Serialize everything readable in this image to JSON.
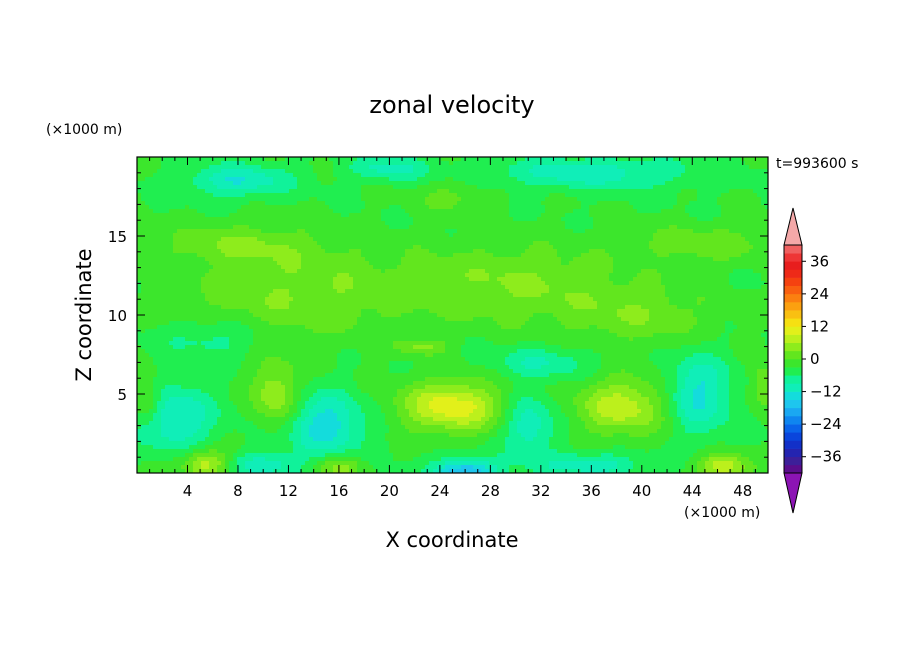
{
  "chart_data": {
    "type": "heatmap",
    "title": "zonal velocity",
    "xlabel": "X coordinate",
    "ylabel": "Z coordinate",
    "x_unit": "(×1000 m)",
    "y_unit": "(×1000 m)",
    "time_label": "t=993600 s",
    "xlim": [
      0,
      50
    ],
    "ylim": [
      0,
      20
    ],
    "x_ticks": [
      4,
      8,
      12,
      16,
      20,
      24,
      28,
      32,
      36,
      40,
      44,
      48
    ],
    "y_ticks": [
      5,
      10,
      15
    ],
    "x_tick_labels": [
      "4",
      "8",
      "12",
      "16",
      "20",
      "24",
      "28",
      "32",
      "36",
      "40",
      "44",
      "48"
    ],
    "y_tick_labels": [
      "5",
      "10",
      "15"
    ],
    "grid": false,
    "colorbar": {
      "position": "right",
      "levels": [
        -42,
        -39,
        -36,
        -33,
        -30,
        -27,
        -24,
        -21,
        -18,
        -15,
        -12,
        -9,
        -6,
        -3,
        0,
        3,
        6,
        9,
        12,
        15,
        18,
        21,
        24,
        27,
        30,
        33,
        36,
        39,
        42
      ],
      "colors": [
        "#5a0d8c",
        "#3d1f99",
        "#2424b0",
        "#1230c8",
        "#0a45dc",
        "#0a64ea",
        "#0f86f0",
        "#1aa8f2",
        "#1ec6ee",
        "#14dcdc",
        "#10eeb8",
        "#10f29a",
        "#20ee50",
        "#3ce62c",
        "#62e61e",
        "#8eec1c",
        "#bcf01c",
        "#e2f01a",
        "#f6e012",
        "#f9c012",
        "#fba010",
        "#fb8010",
        "#f96010",
        "#f54210",
        "#ee2a18",
        "#e81e1e",
        "#ee3636",
        "#f06060"
      ],
      "over_color": "#f4a8a8",
      "under_color": "#8c14b4",
      "tick_values": [
        36,
        24,
        12,
        0,
        -12,
        -24,
        -36
      ],
      "tick_labels": [
        "36",
        "24",
        "12",
        "0",
        "−12",
        "−24",
        "−36"
      ]
    },
    "field": {
      "background_value": -3,
      "blobs": [
        {
          "x": 25,
          "z": 4.2,
          "sx": 4.0,
          "sz": 1.6,
          "a": 14
        },
        {
          "x": 38.5,
          "z": 4.2,
          "sx": 3.5,
          "sz": 1.8,
          "a": 11
        },
        {
          "x": 11,
          "z": 5.0,
          "sx": 1.8,
          "sz": 2.0,
          "a": 9
        },
        {
          "x": 0.8,
          "z": 4.5,
          "sx": 1.2,
          "sz": 1.5,
          "a": 7
        },
        {
          "x": 49.6,
          "z": 5.5,
          "sx": 1.0,
          "sz": 1.5,
          "a": 6
        },
        {
          "x": 22.5,
          "z": 8.0,
          "sx": 1.8,
          "sz": 0.5,
          "a": 6
        },
        {
          "x": 5.5,
          "z": 0.6,
          "sx": 2.0,
          "sz": 0.9,
          "a": 11
        },
        {
          "x": 16,
          "z": 0.4,
          "sx": 2.0,
          "sz": 0.8,
          "a": 8
        },
        {
          "x": 46.5,
          "z": 0.4,
          "sx": 2.0,
          "sz": 0.8,
          "a": 12
        },
        {
          "x": 26,
          "z": 0.0,
          "sx": 2.5,
          "sz": 0.9,
          "a": -16
        },
        {
          "x": 3,
          "z": 3.5,
          "sx": 3.0,
          "sz": 2.0,
          "a": -10
        },
        {
          "x": 15,
          "z": 3.0,
          "sx": 3.0,
          "sz": 2.0,
          "a": -11
        },
        {
          "x": 31,
          "z": 3.0,
          "sx": 2.0,
          "sz": 2.0,
          "a": -9
        },
        {
          "x": 44.5,
          "z": 5.0,
          "sx": 2.5,
          "sz": 2.5,
          "a": -10
        },
        {
          "x": 10,
          "z": 0.5,
          "sx": 3.0,
          "sz": 0.8,
          "a": -8
        },
        {
          "x": 36,
          "z": 0.5,
          "sx": 4.0,
          "sz": 0.8,
          "a": -8
        },
        {
          "x": 13,
          "z": 11.5,
          "sx": 9.0,
          "sz": 3.0,
          "a": 6
        },
        {
          "x": 30,
          "z": 12.0,
          "sx": 8.0,
          "sz": 2.5,
          "a": 6
        },
        {
          "x": 40,
          "z": 10.0,
          "sx": 6.0,
          "sz": 2.0,
          "a": 5
        },
        {
          "x": 45,
          "z": 14.5,
          "sx": 6.0,
          "sz": 1.2,
          "a": 5
        },
        {
          "x": 8,
          "z": 14.5,
          "sx": 6.0,
          "sz": 1.2,
          "a": 5
        },
        {
          "x": 25,
          "z": 17.5,
          "sx": 3.0,
          "sz": 1.0,
          "a": 4
        },
        {
          "x": 8,
          "z": 18.5,
          "sx": 4.0,
          "sz": 1.0,
          "a": -9
        },
        {
          "x": 36,
          "z": 19.0,
          "sx": 8.0,
          "sz": 1.0,
          "a": -8
        },
        {
          "x": 20,
          "z": 19.3,
          "sx": 3.0,
          "sz": 0.8,
          "a": -7
        },
        {
          "x": 32,
          "z": 7.0,
          "sx": 4.0,
          "sz": 1.0,
          "a": -6
        },
        {
          "x": 6,
          "z": 8.5,
          "sx": 4.0,
          "sz": 1.2,
          "a": -5
        }
      ]
    }
  }
}
